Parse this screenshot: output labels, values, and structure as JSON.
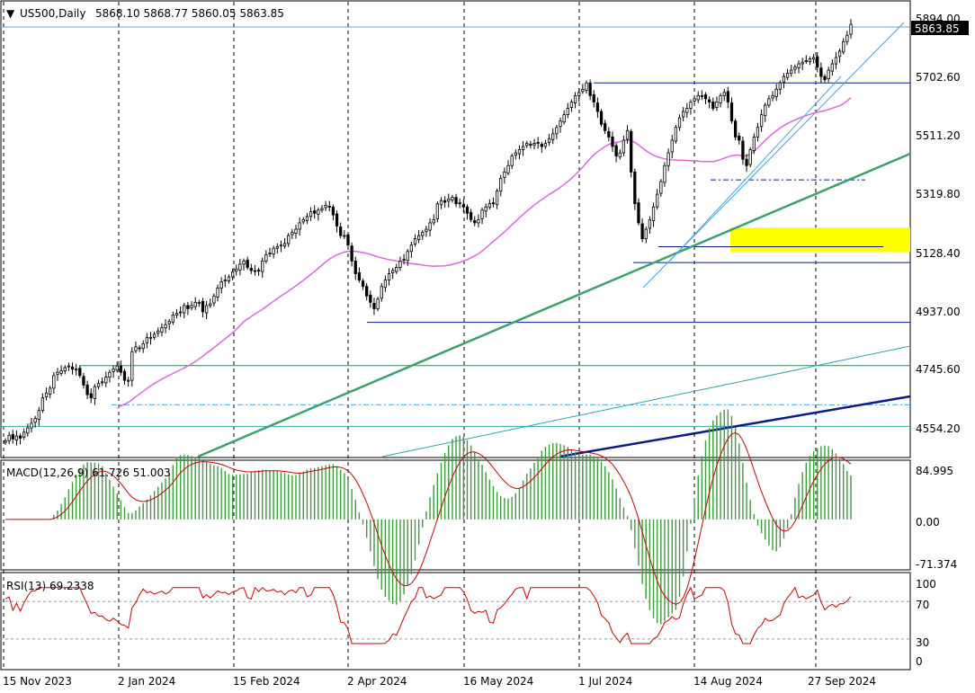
{
  "chart_data": [
    {
      "type": "candlestick",
      "title": "US500,Daily",
      "ohlc_header": "5868.10 5868.77 5860.05 5863.85",
      "last_price_label": "5863.85",
      "y_ticks": [
        "5894.00",
        "5702.60",
        "5511.20",
        "5319.80",
        "5128.40",
        "4937.00",
        "4745.60",
        "4554.20"
      ],
      "ylim": [
        4505,
        5935
      ],
      "x_ticks": [
        "15 Nov 2023",
        "2 Jan 2024",
        "15 Feb 2024",
        "2 Apr 2024",
        "16 May 2024",
        "1 Jul 2024",
        "14 Aug 2024",
        "27 Sep 2024"
      ],
      "grid": "vertical-dashed",
      "close_series": [
        4555,
        4572,
        4560,
        4570,
        4563,
        4582,
        4595,
        4610,
        4625,
        4650,
        4690,
        4705,
        4720,
        4760,
        4770,
        4775,
        4785,
        4790,
        4780,
        4780,
        4760,
        4730,
        4700,
        4690,
        4725,
        4735,
        4740,
        4755,
        4770,
        4780,
        4790,
        4770,
        4745,
        4745,
        4835,
        4850,
        4845,
        4860,
        4880,
        4880,
        4890,
        4900,
        4910,
        4920,
        4930,
        4950,
        4955,
        4960,
        4980,
        4970,
        4980,
        4990,
        4990,
        4960,
        4980,
        4985,
        5010,
        5035,
        5055,
        5060,
        5070,
        5085,
        5095,
        5110,
        5120,
        5100,
        5090,
        5088,
        5090,
        5120,
        5140,
        5145,
        5160,
        5165,
        5170,
        5175,
        5200,
        5210,
        5220,
        5240,
        5250,
        5260,
        5275,
        5270,
        5280,
        5285,
        5295,
        5290,
        5265,
        5230,
        5200,
        5200,
        5170,
        5120,
        5080,
        5060,
        5040,
        5010,
        4990,
        4970,
        5000,
        5040,
        5060,
        5080,
        5090,
        5100,
        5120,
        5125,
        5150,
        5170,
        5190,
        5200,
        5210,
        5220,
        5240,
        5250,
        5300,
        5310,
        5305,
        5315,
        5320,
        5300,
        5300,
        5290,
        5270,
        5250,
        5240,
        5250,
        5280,
        5290,
        5300,
        5300,
        5340,
        5380,
        5400,
        5420,
        5450,
        5460,
        5470,
        5480,
        5490,
        5485,
        5490,
        5490,
        5480,
        5490,
        5505,
        5520,
        5540,
        5560,
        5580,
        5600,
        5620,
        5640,
        5650,
        5660,
        5680,
        5640,
        5620,
        5590,
        5550,
        5530,
        5510,
        5480,
        5450,
        5460,
        5500,
        5530,
        5400,
        5300,
        5240,
        5190,
        5220,
        5250,
        5290,
        5330,
        5370,
        5420,
        5460,
        5500,
        5540,
        5570,
        5590,
        5600,
        5620,
        5630,
        5640,
        5640,
        5630,
        5620,
        5600,
        5620,
        5640,
        5650,
        5620,
        5560,
        5510,
        5500,
        5440,
        5420,
        5470,
        5510,
        5540,
        5580,
        5610,
        5630,
        5640,
        5660,
        5680,
        5700,
        5710,
        5720,
        5730,
        5740,
        5745,
        5750,
        5755,
        5760,
        5730,
        5700,
        5690,
        5720,
        5740,
        5760,
        5780,
        5810,
        5830,
        5864
      ],
      "ma_slow": {
        "start": 0.09,
        "end": 0.945,
        "y_start": 4510,
        "y_end": 5320
      },
      "ma_medium_start_index": 30,
      "lines": {
        "horizontal_levels": [
          5680,
          5375,
          5148,
          5165,
          4927,
          4791
        ],
        "dashdot_levels": [
          5375,
          4668
        ],
        "cyan_level": 4600,
        "yellow_zone": [
          5148,
          5225
        ]
      }
    },
    {
      "type": "bar",
      "title": "MACD(12,26,9) 61.726 51.003",
      "y_ticks": [
        "84.995",
        "0.00",
        "-71.374"
      ],
      "ylim": [
        -85,
        100
      ],
      "histogram_color": "#3d9a3d",
      "signal_color": "#cc0000"
    },
    {
      "type": "line",
      "title": "RSI(13) 69.2338",
      "y_ticks": [
        "100",
        "70",
        "30",
        "0"
      ],
      "ylim": [
        0,
        100
      ],
      "levels": [
        70,
        30
      ],
      "color": "#cc0000"
    }
  ],
  "colors": {
    "ma_pink": "#e066e0",
    "trend_green": "#3aa36a",
    "navy": "#0a1a8c",
    "light_blue": "#3aa7e6",
    "teal": "#2aa8a8",
    "sea_green": "#2e8b57",
    "yellow": "#ffff00"
  }
}
